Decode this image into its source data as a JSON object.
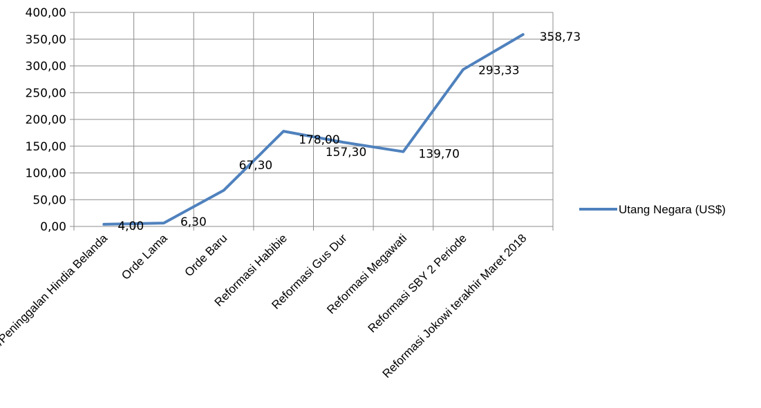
{
  "chart_data": {
    "type": "line",
    "categories": [
      "Jajahan/Peninggalan Hindia Belanda",
      "Orde Lama",
      "Orde Baru",
      "Reformasi Habibie",
      "Reformasi Gus Dur",
      "Reformasi Megawati",
      "Reformasi SBY 2 Periode",
      "Reformasi Jokowi terakhir Maret 2018"
    ],
    "series": [
      {
        "name": "Utang Negara (US$)",
        "values": [
          4.0,
          6.3,
          67.3,
          178.0,
          157.3,
          139.7,
          293.33,
          358.73
        ],
        "data_labels": [
          "4,00",
          "6,30",
          "67,30",
          "178,00",
          "157,30",
          "139,70",
          "293,33",
          "358,73"
        ]
      }
    ],
    "y_ticks": [
      "0,00",
      "50,00",
      "100,00",
      "150,00",
      "200,00",
      "250,00",
      "300,00",
      "350,00",
      "400,00"
    ],
    "ylim": [
      0,
      400
    ],
    "grid": true,
    "legend": "right",
    "title": "",
    "xlabel": "",
    "ylabel": "",
    "colors": {
      "line": "#4F81BD",
      "grid": "#8C8C8C"
    }
  }
}
